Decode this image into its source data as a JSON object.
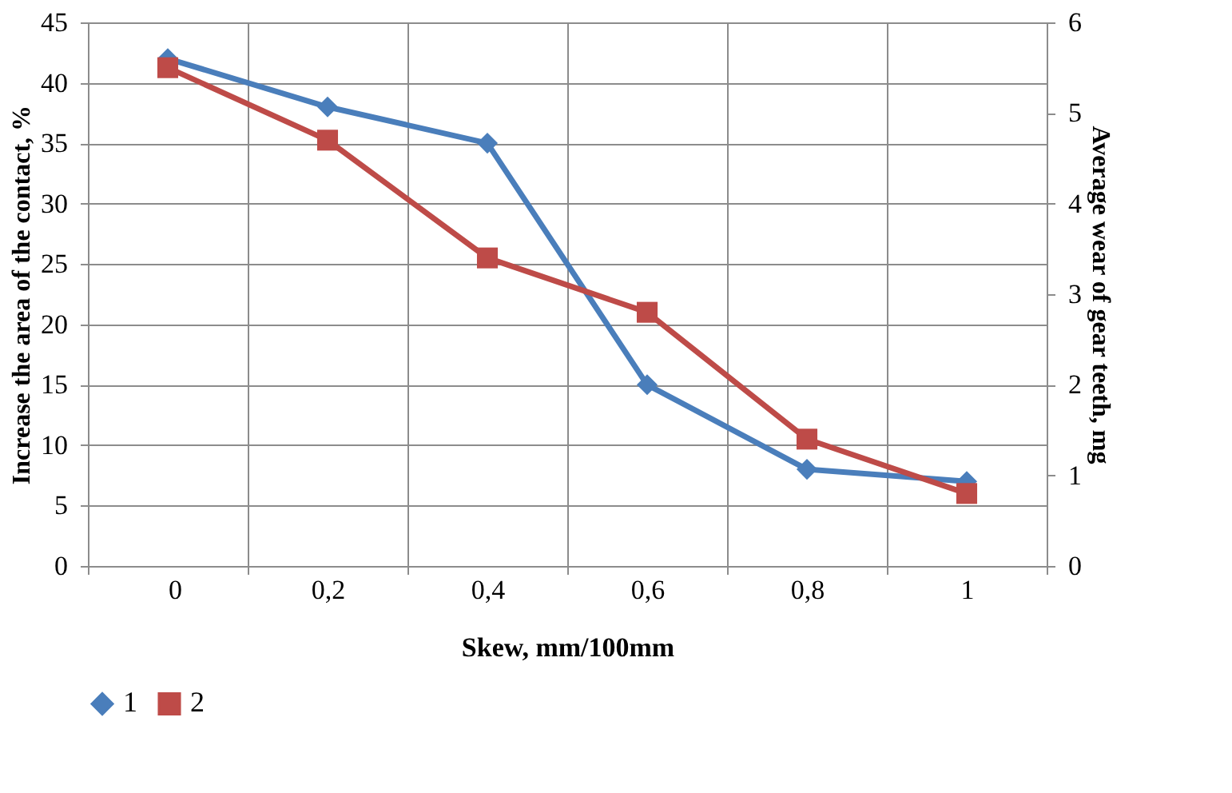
{
  "chart_data": {
    "type": "line",
    "xlabel": "Skew, mm/100mm",
    "ylabel": "Increase the area of the contact, %",
    "y2label": "Average wear of gear teeth, mg",
    "categories": [
      "0",
      "0,2",
      "0,4",
      "0,6",
      "0,8",
      "1"
    ],
    "series": [
      {
        "name": "1",
        "color": "#4a7ebb",
        "marker": "diamond",
        "values": [
          42,
          38,
          35,
          15,
          8,
          7
        ]
      },
      {
        "name": "2",
        "color": "#be4b48",
        "marker": "square",
        "axis": "y2",
        "values": [
          5.5,
          4.7,
          3.4,
          2.8,
          1.4,
          0.8
        ]
      }
    ],
    "ylim": [
      0,
      45
    ],
    "yticks": [
      0,
      5,
      10,
      15,
      20,
      25,
      30,
      35,
      40,
      45
    ],
    "y2lim": [
      0,
      6
    ],
    "y2ticks": [
      0,
      1,
      2,
      3,
      4,
      5,
      6
    ],
    "grid": true,
    "legend": "bottom",
    "line_style": "solid"
  }
}
